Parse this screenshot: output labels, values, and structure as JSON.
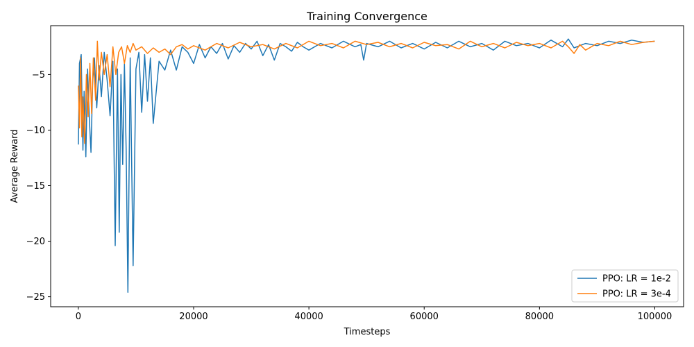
{
  "chart_data": {
    "type": "line",
    "title": "Training Convergence",
    "xlabel": "Timesteps",
    "ylabel": "Average Reward",
    "xlim": [
      -4800,
      105000
    ],
    "ylim": [
      -25.9,
      -0.6
    ],
    "xticks": [
      0,
      20000,
      40000,
      60000,
      80000,
      100000
    ],
    "yticks": [
      -25,
      -20,
      -15,
      -10,
      -5
    ],
    "grid": false,
    "legend_position": "bottom-right",
    "series": [
      {
        "name": "PPO: LR = 1e-2",
        "color": "#1f77b4",
        "x": [
          0,
          200,
          500,
          800,
          1000,
          1300,
          1600,
          1900,
          2200,
          2500,
          2800,
          3200,
          3600,
          4000,
          4500,
          5000,
          5500,
          6000,
          6400,
          6800,
          7100,
          7400,
          7700,
          8000,
          8300,
          8600,
          9000,
          9500,
          10000,
          10500,
          11000,
          11500,
          12000,
          12500,
          13000,
          14000,
          15000,
          16000,
          17000,
          18000,
          19000,
          20000,
          21000,
          22000,
          23000,
          24000,
          25000,
          26000,
          27000,
          28000,
          29000,
          30000,
          31000,
          32000,
          33000,
          34000,
          35000,
          36000,
          37000,
          38000,
          39000,
          40000,
          42000,
          44000,
          46000,
          48000,
          49000,
          49500,
          50000,
          52000,
          54000,
          56000,
          58000,
          60000,
          62000,
          64000,
          66000,
          68000,
          70000,
          72000,
          74000,
          76000,
          78000,
          80000,
          82000,
          84000,
          85000,
          86000,
          88000,
          90000,
          92000,
          94000,
          96000,
          98000,
          100000
        ],
        "values": [
          -11.3,
          -4.0,
          -3.2,
          -11.8,
          -6.5,
          -12.4,
          -4.5,
          -8.9,
          -12.0,
          -5.5,
          -3.5,
          -8.0,
          -4.2,
          -7.0,
          -3.0,
          -5.5,
          -8.7,
          -3.8,
          -20.4,
          -4.5,
          -19.2,
          -5.0,
          -13.1,
          -4.0,
          -11.8,
          -24.6,
          -3.5,
          -22.2,
          -4.5,
          -3.0,
          -8.4,
          -3.2,
          -7.4,
          -3.5,
          -9.4,
          -3.8,
          -4.6,
          -2.8,
          -4.6,
          -2.5,
          -3.0,
          -4.0,
          -2.3,
          -3.5,
          -2.5,
          -3.1,
          -2.2,
          -3.6,
          -2.4,
          -3.0,
          -2.2,
          -2.7,
          -2.0,
          -3.3,
          -2.3,
          -3.7,
          -2.2,
          -2.5,
          -2.9,
          -2.1,
          -2.5,
          -2.8,
          -2.2,
          -2.6,
          -2.0,
          -2.5,
          -2.3,
          -3.7,
          -2.2,
          -2.5,
          -2.0,
          -2.6,
          -2.2,
          -2.7,
          -2.1,
          -2.6,
          -2.0,
          -2.5,
          -2.2,
          -2.8,
          -2.0,
          -2.4,
          -2.2,
          -2.6,
          -1.9,
          -2.5,
          -1.8,
          -2.6,
          -2.2,
          -2.4,
          -2.0,
          -2.2,
          -1.9,
          -2.1,
          -2.0
        ]
      },
      {
        "name": "PPO: LR = 3e-4",
        "color": "#ff7f0e",
        "x": [
          0,
          200,
          400,
          600,
          800,
          1100,
          1400,
          1700,
          2000,
          2300,
          2600,
          3000,
          3300,
          3600,
          4000,
          4500,
          5000,
          5500,
          6000,
          6500,
          7000,
          7500,
          8000,
          8500,
          9000,
          9500,
          10000,
          11000,
          12000,
          13000,
          14000,
          15000,
          16000,
          17000,
          18000,
          19000,
          20000,
          22000,
          24000,
          26000,
          28000,
          30000,
          32000,
          34000,
          36000,
          38000,
          40000,
          42000,
          44000,
          46000,
          48000,
          50000,
          52000,
          54000,
          56000,
          58000,
          60000,
          62000,
          64000,
          66000,
          68000,
          70000,
          72000,
          74000,
          76000,
          78000,
          80000,
          82000,
          84000,
          85000,
          86000,
          87000,
          88000,
          90000,
          92000,
          94000,
          96000,
          98000,
          100000
        ],
        "values": [
          -6.0,
          -9.8,
          -3.5,
          -10.6,
          -7.0,
          -11.2,
          -5.0,
          -8.8,
          -4.0,
          -8.5,
          -3.5,
          -7.3,
          -2.0,
          -5.5,
          -3.0,
          -5.0,
          -3.2,
          -6.1,
          -2.5,
          -5.0,
          -3.0,
          -2.5,
          -4.0,
          -2.4,
          -3.0,
          -2.2,
          -2.8,
          -2.5,
          -3.1,
          -2.6,
          -3.0,
          -2.7,
          -3.2,
          -2.5,
          -2.3,
          -2.7,
          -2.4,
          -2.8,
          -2.2,
          -2.6,
          -2.1,
          -2.5,
          -2.3,
          -2.7,
          -2.2,
          -2.6,
          -2.0,
          -2.4,
          -2.2,
          -2.6,
          -2.0,
          -2.3,
          -2.1,
          -2.5,
          -2.2,
          -2.6,
          -2.1,
          -2.4,
          -2.3,
          -2.7,
          -2.0,
          -2.5,
          -2.2,
          -2.6,
          -2.1,
          -2.4,
          -2.2,
          -2.6,
          -2.0,
          -2.5,
          -3.1,
          -2.3,
          -2.8,
          -2.2,
          -2.4,
          -2.0,
          -2.3,
          -2.1,
          -2.0
        ]
      }
    ]
  }
}
